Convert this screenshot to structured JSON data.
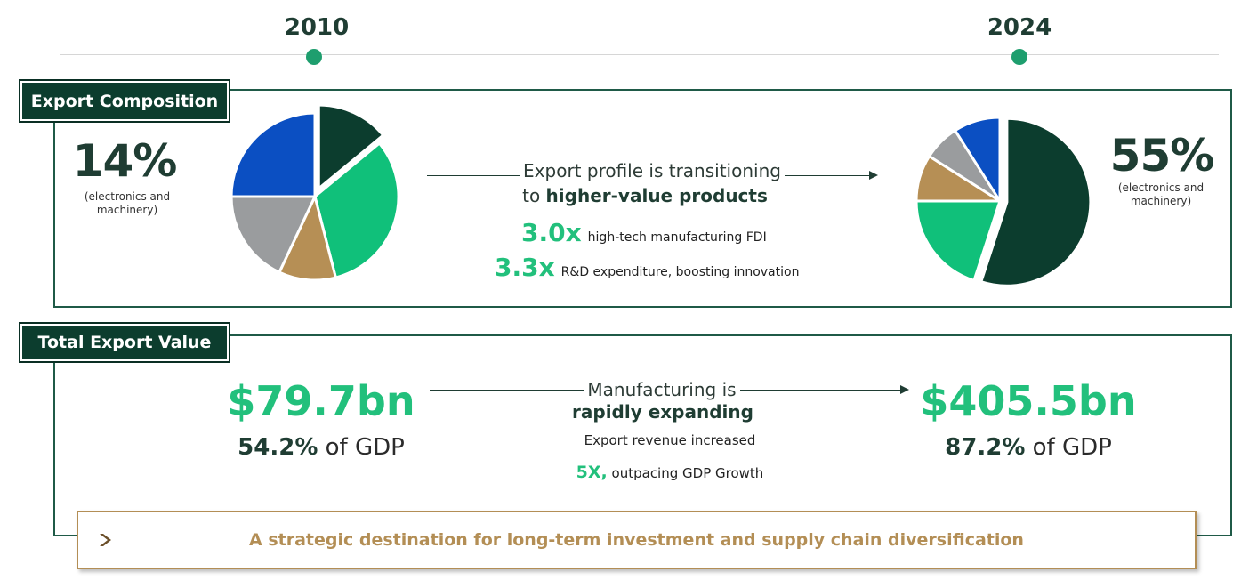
{
  "timeline": {
    "year_left": "2010",
    "year_right": "2024"
  },
  "export_composition": {
    "tag": "Export Composition",
    "left_pct": "14%",
    "left_note_line1": "(electronics and",
    "left_note_line2": "machinery)",
    "right_pct": "55%",
    "right_note_line1": "(electronics and",
    "right_note_line2": "machinery)",
    "message_line1": "Export profile is transitioning",
    "message_line2_prefix": "to ",
    "message_line2_bold": "higher-value products",
    "stats": [
      {
        "value": "3.0x",
        "desc": "high-tech manufacturing FDI"
      },
      {
        "value": "3.3x",
        "desc": "R&D expenditure, boosting innovation"
      }
    ]
  },
  "total_export": {
    "tag": "Total Export Value",
    "left_value": "$79.7bn",
    "left_gdp_bold": "54.2%",
    "left_gdp_rest": " of GDP",
    "right_value": "$405.5bn",
    "right_gdp_bold": "87.2%",
    "right_gdp_rest": " of GDP",
    "message_line1": "Manufacturing is",
    "message_line2": "rapidly expanding",
    "message_line3": "Export revenue increased",
    "growth_bold": "5X,",
    "growth_rest": " outpacing GDP Growth"
  },
  "banner": {
    "text": "A strategic destination for long-term investment and supply chain diversification",
    "icon": "chevron-right-icon"
  },
  "colors": {
    "dark_green": "#0c3d2e",
    "bright_green": "#22c07c",
    "gray": "#9a9c9e",
    "tan": "#b68f55",
    "blue": "#0b4fc2"
  },
  "chart_data": [
    {
      "type": "pie",
      "year": "2010",
      "slices": [
        {
          "value": 14,
          "color": "#0c3d2e",
          "exploded": true
        },
        {
          "value": 32,
          "color": "#10c07a"
        },
        {
          "value": 11,
          "color": "#b68f55"
        },
        {
          "value": 18,
          "color": "#9a9c9e"
        },
        {
          "value": 25,
          "color": "#0b4fc2"
        }
      ]
    },
    {
      "type": "pie",
      "year": "2024",
      "slices": [
        {
          "value": 55,
          "color": "#0c3d2e",
          "exploded": true
        },
        {
          "value": 20,
          "color": "#10c07a"
        },
        {
          "value": 9,
          "color": "#b68f55"
        },
        {
          "value": 7,
          "color": "#9a9c9e"
        },
        {
          "value": 9,
          "color": "#0b4fc2"
        }
      ]
    }
  ]
}
